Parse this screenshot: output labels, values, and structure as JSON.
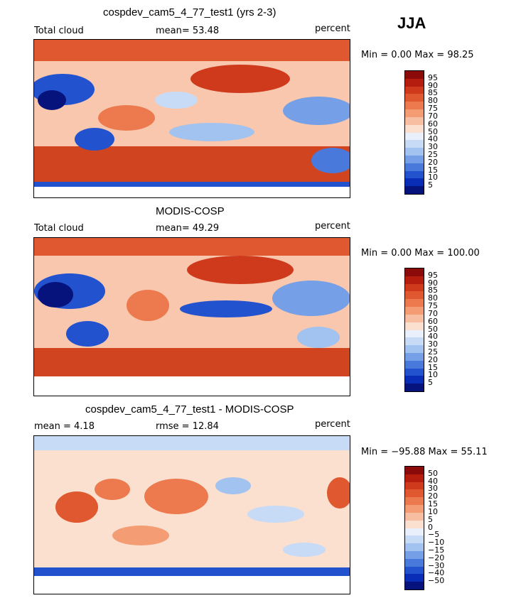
{
  "season": "JJA",
  "panels": [
    {
      "title": "cospdev_cam5_4_77_test1 (yrs 2-3)",
      "left_label": "Total cloud",
      "mid_label": "mean=  53.48",
      "right_label": "percent",
      "minmax": "Min =    0.00 Max =   98.25",
      "colorbar": [
        "95",
        "90",
        "85",
        "80",
        "75",
        "70",
        "60",
        "50",
        "40",
        "30",
        "25",
        "20",
        "15",
        "10",
        "5"
      ]
    },
    {
      "title": "MODIS-COSP",
      "left_label": "Total cloud",
      "mid_label": "mean=  49.29",
      "right_label": "percent",
      "minmax": "Min =    0.00 Max = 100.00",
      "colorbar": [
        "95",
        "90",
        "85",
        "80",
        "75",
        "70",
        "60",
        "50",
        "40",
        "30",
        "25",
        "20",
        "15",
        "10",
        "5"
      ]
    },
    {
      "title": "cospdev_cam5_4_77_test1 - MODIS-COSP",
      "left_label": "mean =    4.18",
      "mid_label": "rmse =   12.84",
      "right_label": "percent",
      "minmax": "Min = −95.88 Max =   55.11",
      "colorbar": [
        "50",
        "40",
        "30",
        "20",
        "15",
        "10",
        "5",
        "0",
        "−5",
        "−10",
        "−15",
        "−20",
        "−30",
        "−40",
        "−50"
      ]
    }
  ],
  "palette": [
    "#8b0a0a",
    "#b51e0f",
    "#cf3a1c",
    "#e0582f",
    "#ec7a4e",
    "#f49c74",
    "#f8bea2",
    "#fbe0d0",
    "#e9f0fb",
    "#c7dbf6",
    "#a2c3f0",
    "#759fe6",
    "#4a79dc",
    "#2352cf",
    "#0a2db8",
    "#06137d"
  ]
}
